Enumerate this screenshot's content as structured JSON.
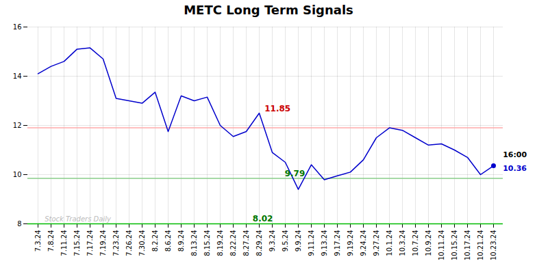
{
  "chart_data": {
    "type": "line",
    "title": "METC Long Term Signals",
    "categories": [
      "7.3.24",
      "7.8.24",
      "7.11.24",
      "7.15.24",
      "7.17.24",
      "7.19.24",
      "7.23.24",
      "7.26.24",
      "7.30.24",
      "8.2.24",
      "8.6.24",
      "8.9.24",
      "8.13.24",
      "8.15.24",
      "8.19.24",
      "8.22.24",
      "8.27.24",
      "8.29.24",
      "9.3.24",
      "9.5.24",
      "9.9.24",
      "9.11.24",
      "9.13.24",
      "9.17.24",
      "9.19.24",
      "9.24.24",
      "9.27.24",
      "10.1.24",
      "10.3.24",
      "10.7.24",
      "10.9.24",
      "10.11.24",
      "10.15.24",
      "10.17.24",
      "10.21.24",
      "10.23.24"
    ],
    "values": [
      14.1,
      14.4,
      14.6,
      15.1,
      15.15,
      14.7,
      13.1,
      13.0,
      12.9,
      13.35,
      11.75,
      13.2,
      13.0,
      13.15,
      12.0,
      11.55,
      11.75,
      12.5,
      10.9,
      10.5,
      9.4,
      10.4,
      9.79,
      9.95,
      10.1,
      10.6,
      11.5,
      11.9,
      11.8,
      11.5,
      11.2,
      11.25,
      11.0,
      10.7,
      10.0,
      10.36
    ],
    "color": "#0000cc",
    "ylim": [
      8,
      16
    ],
    "yticks": [
      8,
      10,
      12,
      14,
      16
    ],
    "grid": true,
    "reference_lines": [
      {
        "value": 11.9,
        "color": "#ffaaaa"
      },
      {
        "value": 9.85,
        "color": "#88cc88"
      },
      {
        "value": 8.0,
        "color": "#00bb00"
      }
    ],
    "annotations": [
      {
        "text": "11.85",
        "color": "#cc0000",
        "x": "8.29.24",
        "y": 12.5
      },
      {
        "text": "9.79",
        "color": "#007700",
        "x": "9.13.24",
        "y": 9.79
      },
      {
        "text": "8.02",
        "color": "#007700",
        "x": "8.29.24",
        "y": 8.0
      },
      {
        "text": "16:00",
        "color": "#000000",
        "x": "10.23.24",
        "y": 10.36
      },
      {
        "text": "10.36",
        "color": "#0000cc",
        "x": "10.23.24",
        "y": 10.36
      },
      {
        "text": "Stock Traders Daily",
        "color": "#bbbbbb",
        "x": "7.3.24",
        "y": 8.0
      }
    ]
  }
}
